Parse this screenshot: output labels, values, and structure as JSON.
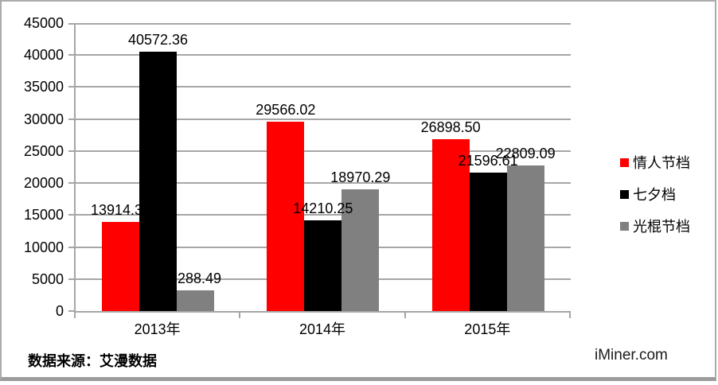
{
  "chart_data": {
    "type": "bar",
    "categories": [
      "2013年",
      "2014年",
      "2015年"
    ],
    "series": [
      {
        "name": "情人节档",
        "color": "#ff0000",
        "values": [
          13914.38,
          29566.02,
          26898.5
        ]
      },
      {
        "name": "七夕档",
        "color": "#000000",
        "values": [
          40572.36,
          14210.25,
          21596.61
        ]
      },
      {
        "name": "光棍节档",
        "color": "#808080",
        "values": [
          3288.49,
          18970.29,
          22809.09
        ]
      }
    ],
    "value_label_decimals": 2,
    "title": "",
    "xlabel": "",
    "ylabel": "",
    "ylim": [
      0,
      45000
    ],
    "ytick_step": 5000,
    "grid": true,
    "legend_position": "right",
    "gridline_color": "#a6a6a6"
  },
  "footer": {
    "source": "数据来源：艾漫数据",
    "brand": "iMiner.com"
  }
}
